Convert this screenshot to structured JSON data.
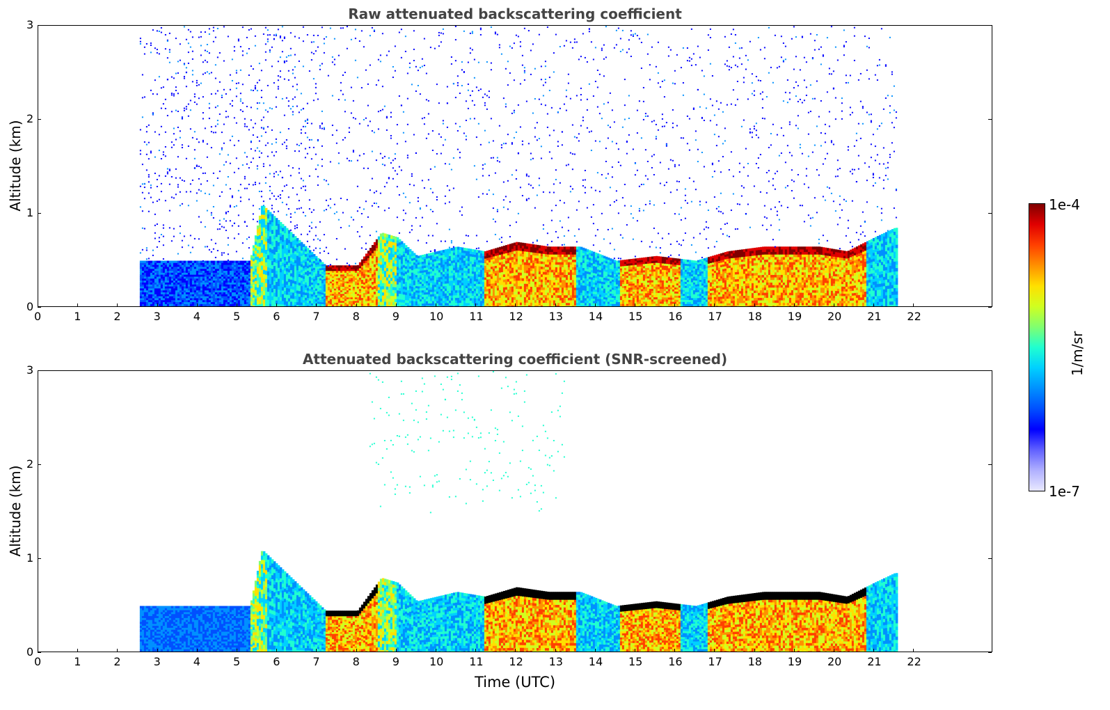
{
  "chart_data": [
    {
      "type": "heatmap",
      "title": "Raw attenuated backscattering coefficient",
      "ylabel": "Altitude (km)",
      "xlabel": "",
      "xlim": [
        0,
        24
      ],
      "ylim": [
        0,
        3
      ],
      "x_ticks": [
        "0",
        "1",
        "2",
        "3",
        "4",
        "5",
        "6",
        "7",
        "8",
        "9",
        "10",
        "11",
        "12",
        "13",
        "14",
        "15",
        "16",
        "17",
        "18",
        "19",
        "20",
        "21",
        "22"
      ],
      "y_ticks": [
        "0",
        "1",
        "2",
        "3"
      ],
      "data_start_hour": 2.55,
      "data_end_hour": 21.55,
      "boundary_layer_top_km": [
        [
          2.6,
          0.5
        ],
        [
          5.3,
          0.5
        ],
        [
          5.6,
          1.1
        ],
        [
          7.2,
          0.45
        ],
        [
          8.0,
          0.45
        ],
        [
          8.6,
          0.8
        ],
        [
          9.0,
          0.75
        ],
        [
          9.5,
          0.55
        ],
        [
          10.5,
          0.65
        ],
        [
          11.2,
          0.6
        ],
        [
          12.0,
          0.7
        ],
        [
          12.8,
          0.65
        ],
        [
          13.6,
          0.65
        ],
        [
          14.5,
          0.5
        ],
        [
          15.5,
          0.55
        ],
        [
          16.5,
          0.5
        ],
        [
          17.3,
          0.6
        ],
        [
          18.2,
          0.65
        ],
        [
          18.7,
          0.65
        ],
        [
          19.6,
          0.65
        ],
        [
          20.3,
          0.6
        ],
        [
          21.0,
          0.75
        ],
        [
          21.5,
          0.85
        ]
      ],
      "residual_noise": "sparse blue speckle up to 3 km between 2.55 and 21.55 UTC"
    },
    {
      "type": "heatmap",
      "title": "Attenuated backscattering coefficient (SNR-screened)",
      "ylabel": "Altitude (km)",
      "xlabel": "Time (UTC)",
      "xlim": [
        0,
        24
      ],
      "ylim": [
        0,
        3
      ],
      "x_ticks": [
        "0",
        "1",
        "2",
        "3",
        "4",
        "5",
        "6",
        "7",
        "8",
        "9",
        "10",
        "11",
        "12",
        "13",
        "14",
        "15",
        "16",
        "17",
        "18",
        "19",
        "20",
        "21",
        "22"
      ],
      "y_ticks": [
        "0",
        "1",
        "2",
        "3"
      ],
      "data_start_hour": 2.55,
      "data_end_hour": 21.55,
      "residual_noise": "sparse cyan speckle between 1.5 and 3 km around 8.5–13 UTC"
    }
  ],
  "colorbar": {
    "max_label": "1e-4",
    "min_label": "1e-7",
    "unit": "1/m/sr",
    "colors": [
      "#e8e8ff",
      "#b0b0ff",
      "#6060ff",
      "#0000ff",
      "#0050ff",
      "#0090ff",
      "#00d0ff",
      "#20ffd0",
      "#80ff70",
      "#d0ff20",
      "#ffe000",
      "#ff9000",
      "#ff4000",
      "#e00000",
      "#800000"
    ]
  }
}
